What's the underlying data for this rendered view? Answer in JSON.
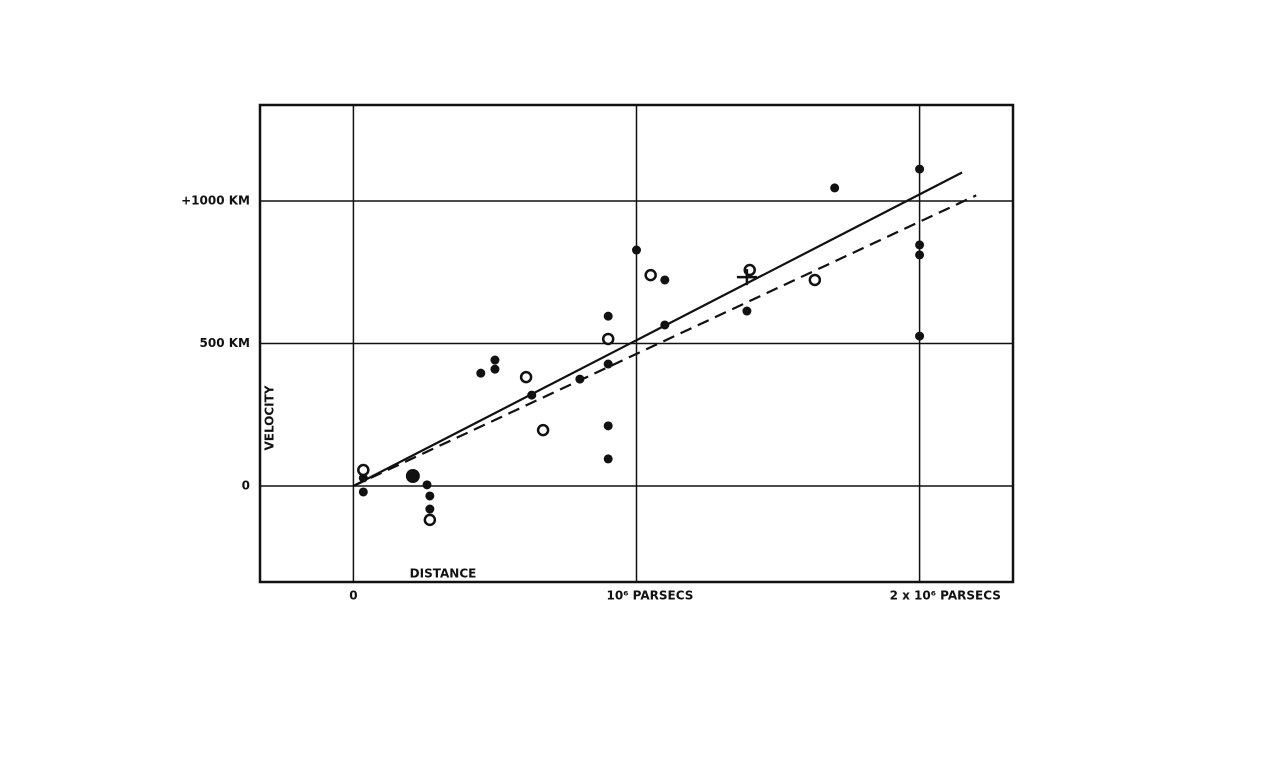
{
  "chart_data": {
    "type": "scatter",
    "x_label": "DISTANCE",
    "y_label": "VELOCITY",
    "xlim": [
      -330000,
      2330000
    ],
    "ylim": [
      -337,
      1337
    ],
    "xticks": [
      {
        "value": 0,
        "label": "0"
      },
      {
        "value": 1000000,
        "label": "10⁶ PARSECS"
      },
      {
        "value": 2000000,
        "label": "2 x 10⁶ PARSECS"
      }
    ],
    "yticks": [
      {
        "value": 0,
        "label": "0"
      },
      {
        "value": 500,
        "label": "500 KM"
      },
      {
        "value": 1000,
        "label": "+1000 KM"
      }
    ],
    "grid": true,
    "series": [
      {
        "marker": "filled",
        "color": "#111111",
        "x": [
          35000,
          35000,
          260000,
          270000,
          270000,
          450000,
          500000,
          500000,
          630000,
          800000,
          900000,
          900000,
          900000,
          900000,
          1000000,
          1100000,
          1100000,
          1390000,
          1700000,
          2000000,
          2000000,
          2000000,
          2000000
        ],
        "values": [
          28,
          -21,
          4,
          -35,
          -81,
          396,
          442,
          410,
          319,
          375,
          596,
          428,
          211,
          95,
          828,
          723,
          565,
          614,
          1046,
          1112,
          846,
          811,
          526
        ]
      },
      {
        "marker": "filled-large",
        "color": "#111111",
        "x": [
          210000
        ],
        "values": [
          35
        ]
      },
      {
        "marker": "open",
        "color": "#111111",
        "x": [
          35000,
          270000,
          610000,
          670000,
          900000,
          1050000,
          1400000,
          1630000
        ],
        "values": [
          56,
          -119,
          382,
          196,
          516,
          740,
          758,
          723
        ]
      },
      {
        "marker": "cross",
        "color": "#111111",
        "x": [
          1390000
        ],
        "values": [
          733
        ]
      }
    ],
    "lines": [
      {
        "dash": false,
        "color": "#111111",
        "x": [
          0,
          2150000
        ],
        "values": [
          0,
          1100
        ]
      },
      {
        "dash": true,
        "color": "#111111",
        "x": [
          0,
          2200000
        ],
        "values": [
          0,
          1020
        ]
      }
    ]
  }
}
